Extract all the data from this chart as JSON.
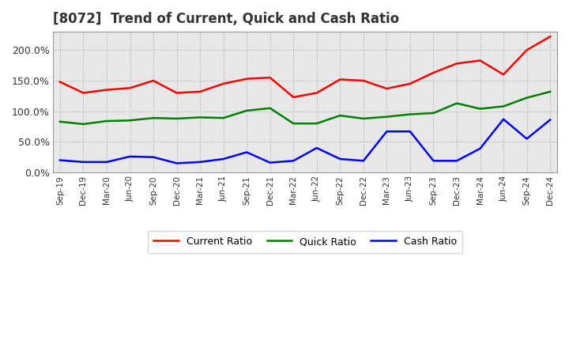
{
  "title": "[8072]  Trend of Current, Quick and Cash Ratio",
  "x_labels": [
    "Sep-19",
    "Dec-19",
    "Mar-20",
    "Jun-20",
    "Sep-20",
    "Dec-20",
    "Mar-21",
    "Jun-21",
    "Sep-21",
    "Dec-21",
    "Mar-22",
    "Jun-22",
    "Sep-22",
    "Dec-22",
    "Mar-23",
    "Jun-23",
    "Sep-23",
    "Dec-23",
    "Mar-24",
    "Jun-24",
    "Sep-24",
    "Dec-24"
  ],
  "current_ratio": [
    148,
    130,
    135,
    138,
    150,
    130,
    132,
    145,
    153,
    155,
    123,
    130,
    152,
    150,
    137,
    145,
    163,
    178,
    183,
    160,
    200,
    222
  ],
  "quick_ratio": [
    83,
    79,
    84,
    85,
    89,
    88,
    90,
    89,
    101,
    105,
    80,
    80,
    93,
    88,
    91,
    95,
    97,
    113,
    104,
    108,
    122,
    132
  ],
  "cash_ratio": [
    20,
    17,
    17,
    26,
    25,
    15,
    17,
    22,
    33,
    16,
    19,
    40,
    22,
    19,
    67,
    67,
    19,
    19,
    39,
    87,
    55,
    86
  ],
  "ylim": [
    0,
    230
  ],
  "yticks": [
    0,
    50,
    100,
    150,
    200
  ],
  "ytick_labels": [
    "0.0%",
    "50.0%",
    "100.0%",
    "150.0%",
    "200.0%"
  ],
  "current_color": "#ff0000",
  "quick_color": "#008000",
  "cash_color": "#0000ff",
  "background_color": "#ffffff",
  "plot_bg_color": "#e8e8e8",
  "grid_color": "#ffffff",
  "title_fontsize": 12,
  "legend_labels": [
    "Current Ratio",
    "Quick Ratio",
    "Cash Ratio"
  ]
}
